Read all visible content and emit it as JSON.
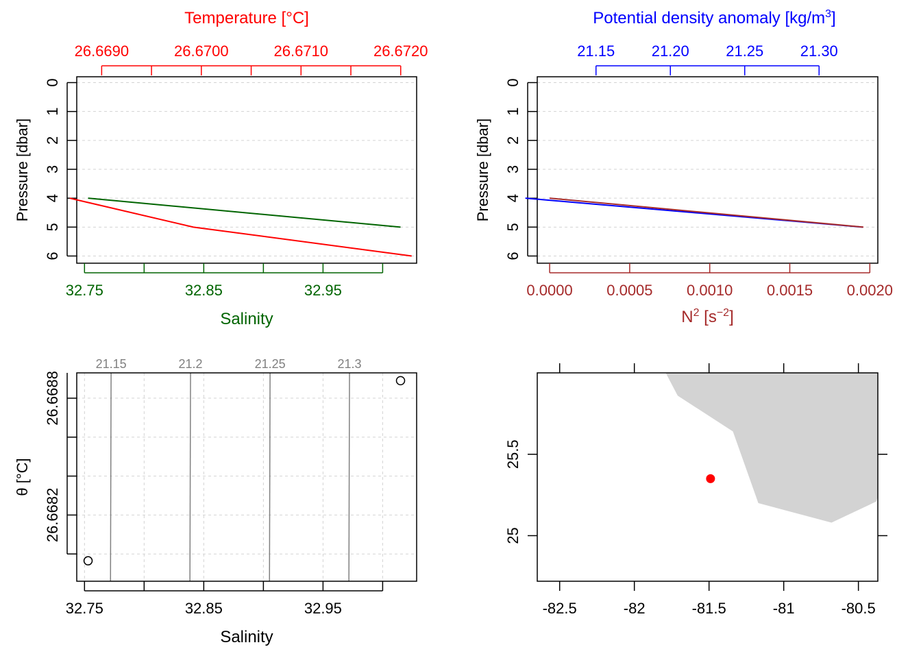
{
  "colors": {
    "temperature": "#ff0000",
    "salinity": "#006400",
    "density": "#0000ff",
    "n2": "#a52a2a",
    "ink": "#000000",
    "grid": "#d3d3d3",
    "isopycnal": "#808080",
    "land": "#d3d3d3",
    "station": "#ff0000"
  },
  "chart_data": [
    {
      "type": "line",
      "panel": "profile-ts",
      "title": "Temperature [°C]",
      "xlabel": "Salinity",
      "ylabel": "Pressure [dbar]",
      "y_reversed": true,
      "ylim": [
        0,
        6
      ],
      "yticks": [
        "0",
        "1",
        "2",
        "3",
        "4",
        "5",
        "6"
      ],
      "grid": "horizontal dashed",
      "top_axis": {
        "label": "Temperature [°C]",
        "range": [
          26.66875,
          26.67216
        ],
        "ticks": [
          26.669,
          26.6695,
          26.67,
          26.6705,
          26.671,
          26.6715,
          26.672
        ],
        "tick_labels": [
          "26.6690",
          "",
          "26.6700",
          "",
          "26.6710",
          "",
          "26.6720"
        ]
      },
      "bottom_axis": {
        "label": "Salinity",
        "range": [
          32.7435,
          33.0285
        ],
        "ticks": [
          32.75,
          32.8,
          32.85,
          32.9,
          32.95,
          33.0
        ],
        "tick_labels": [
          "32.75",
          "",
          "32.85",
          "",
          "32.95",
          ""
        ]
      },
      "series": [
        {
          "name": "Temperature",
          "axis": "top",
          "x": [
            26.66868,
            26.66992,
            26.67211
          ],
          "y": [
            4,
            5,
            6
          ]
        },
        {
          "name": "Salinity",
          "axis": "bottom",
          "x": [
            32.753,
            33.015
          ],
          "y": [
            4,
            5
          ]
        }
      ]
    },
    {
      "type": "line",
      "panel": "profile-density",
      "title": "Potential density anomaly [kg/m3]",
      "xlabel": "N2 [s-2]",
      "ylabel": "Pressure [dbar]",
      "y_reversed": true,
      "ylim": [
        0,
        6
      ],
      "yticks": [
        "0",
        "1",
        "2",
        "3",
        "4",
        "5",
        "6"
      ],
      "grid": "horizontal dashed",
      "top_axis": {
        "label_main": "Potential density anomaly [kg/m",
        "label_sup": "3",
        "label_end": "]",
        "range": [
          21.1105,
          21.3395
        ],
        "ticks": [
          21.15,
          21.2,
          21.25,
          21.3
        ],
        "tick_labels": [
          "21.15",
          "21.20",
          "21.25",
          "21.30"
        ]
      },
      "bottom_axis": {
        "label_main": "N",
        "label_sup1": "2",
        "label_mid": " [s",
        "label_sup2": "−2",
        "label_end": "]",
        "range": [
          -7.74e-05,
          0.00205
        ],
        "ticks": [
          0,
          0.0005,
          0.001,
          0.0015,
          0.002
        ],
        "tick_labels": [
          "0.0000",
          "0.0005",
          "0.0010",
          "0.0015",
          "0.0020"
        ]
      },
      "series": [
        {
          "name": "Potential density anomaly",
          "axis": "top",
          "x": [
            21.1025,
            21.3292
          ],
          "y": [
            4,
            5
          ]
        },
        {
          "name": "N2",
          "axis": "bottom",
          "x": [
            0.0,
            0.00196
          ],
          "y": [
            4,
            5
          ]
        }
      ]
    },
    {
      "type": "scatter",
      "panel": "ts-diagram",
      "xlabel": "Salinity",
      "ylabel": "θ [°C]",
      "xlim": [
        32.7435,
        33.0285
      ],
      "ylim": [
        26.66786,
        26.66893
      ],
      "xticks": [
        32.75,
        32.8,
        32.85,
        32.9,
        32.95,
        33.0
      ],
      "xtick_labels": [
        "32.75",
        "",
        "32.85",
        "",
        "32.95",
        ""
      ],
      "yticks": [
        26.668,
        26.6682,
        26.6684,
        26.6686,
        26.6688,
        26.669
      ],
      "ytick_labels": [
        "",
        "26.6682",
        "",
        "",
        "26.6688",
        ""
      ],
      "grid": "dashed",
      "isopycnals": [
        {
          "label": "21.15",
          "x": [
            32.7723,
            32.7718
          ]
        },
        {
          "label": "21.2",
          "x": [
            32.8389,
            32.8384
          ]
        },
        {
          "label": "21.25",
          "x": [
            32.9056,
            32.9051
          ]
        },
        {
          "label": "21.3",
          "x": [
            32.9722,
            32.9717
          ]
        }
      ],
      "points": [
        {
          "x": 32.753,
          "y": 26.667965
        },
        {
          "x": 33.015,
          "y": 26.66889
        }
      ]
    },
    {
      "type": "map",
      "panel": "station-map",
      "xlim": [
        -82.65,
        -80.37
      ],
      "ylim": [
        24.72,
        26.0
      ],
      "xticks": [
        -82.5,
        -82,
        -81.5,
        -81,
        -80.5
      ],
      "xtick_labels": [
        "-82.5",
        "-82",
        "-81.5",
        "-81",
        "-80.5"
      ],
      "yticks": [
        25,
        25.5
      ],
      "ytick_labels": [
        "25",
        "25.5"
      ],
      "land": {
        "lon": [
          -81.79,
          -81.71,
          -81.34,
          -81.17,
          -80.68,
          -80.38,
          -80.37,
          -80.37,
          -81.79
        ],
        "lat": [
          26.0,
          25.86,
          25.64,
          25.2,
          25.08,
          25.21,
          25.24,
          26.0,
          26.0
        ]
      },
      "station": {
        "lon": -81.49,
        "lat": 25.35
      }
    }
  ]
}
